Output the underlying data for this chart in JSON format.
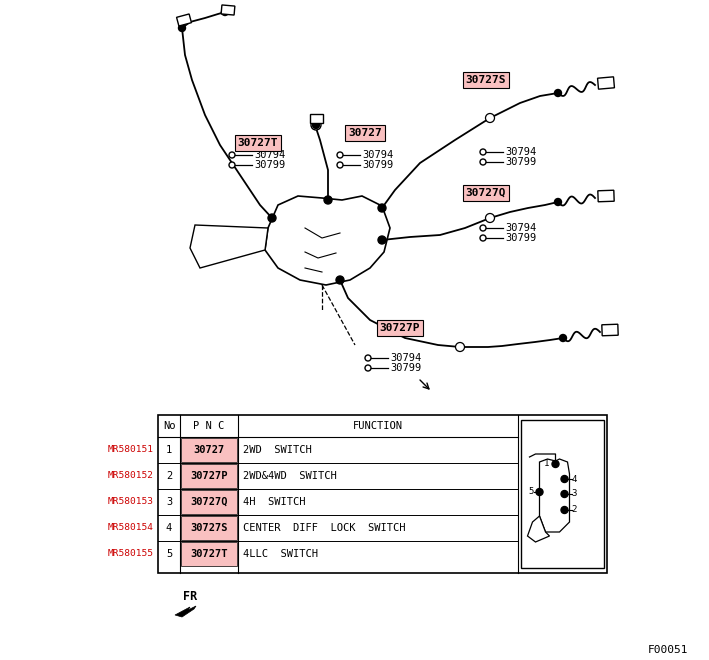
{
  "bg_color": "#ffffff",
  "table": {
    "rows": [
      {
        "mr": "MR580151",
        "no": "1",
        "pnc": "30727",
        "function": "2WD  SWITCH"
      },
      {
        "mr": "MR580152",
        "no": "2",
        "pnc": "30727P",
        "function": "2WD&4WD  SWITCH"
      },
      {
        "mr": "MR580153",
        "no": "3",
        "pnc": "30727Q",
        "function": "4H  SWITCH"
      },
      {
        "mr": "MR580154",
        "no": "4",
        "pnc": "30727S",
        "function": "CENTER  DIFF  LOCK  SWITCH"
      },
      {
        "mr": "MR580155",
        "no": "5",
        "pnc": "30727T",
        "function": "4LLC  SWITCH"
      }
    ]
  },
  "mr_color": "#cc0000",
  "pink_bg": "#f9c0c0",
  "fig_width": 7.09,
  "fig_height": 6.6,
  "dpi": 100
}
